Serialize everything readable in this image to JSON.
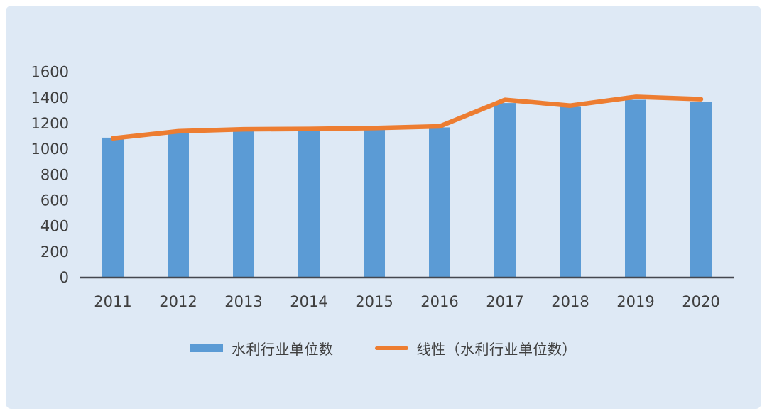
{
  "colors": {
    "page_background": "#ffffff",
    "panel_background": "#dee9f5",
    "bar": "#5b9bd5",
    "line": "#ed7d31",
    "axis": "#44474f",
    "text": "#3f3f3f"
  },
  "chart_data": {
    "type": "bar",
    "title": "",
    "categories": [
      "2011",
      "2012",
      "2013",
      "2014",
      "2015",
      "2016",
      "2017",
      "2018",
      "2019",
      "2020"
    ],
    "series": [
      {
        "name": "水利行业单位数",
        "type": "bar",
        "color": "#5b9bd5",
        "values": [
          1090,
          1130,
          1150,
          1150,
          1160,
          1170,
          1360,
          1330,
          1385,
          1370
        ]
      },
      {
        "name": "线性（水利行业单位数）",
        "type": "line",
        "color": "#ed7d31",
        "values": [
          1085,
          1140,
          1155,
          1158,
          1165,
          1178,
          1385,
          1340,
          1408,
          1390
        ]
      }
    ],
    "xlabel": "",
    "ylabel": "",
    "ylim": [
      0,
      1600
    ],
    "yticks": [
      0,
      200,
      400,
      600,
      800,
      1000,
      1200,
      1400,
      1600
    ],
    "grid": false,
    "legend_position": "bottom"
  },
  "legend": {
    "items": [
      {
        "label": "水利行业单位数",
        "marker": "rect",
        "color": "#5b9bd5"
      },
      {
        "label": "线性（水利行业单位数）",
        "marker": "line",
        "color": "#ed7d31"
      }
    ]
  }
}
